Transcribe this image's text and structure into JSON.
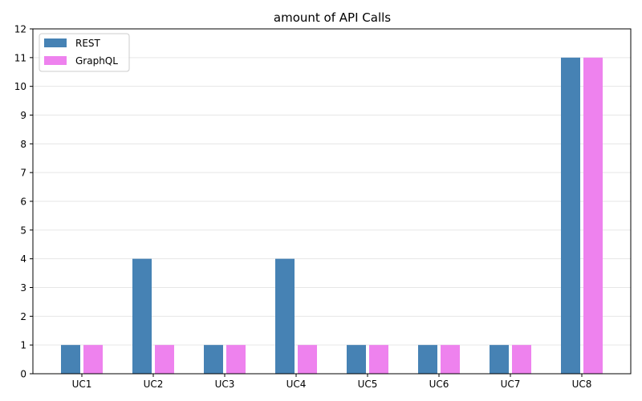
{
  "chart_data": {
    "type": "bar",
    "title": "amount of API Calls",
    "xlabel": "",
    "ylabel": "",
    "categories": [
      "UC1",
      "UC2",
      "UC3",
      "UC4",
      "UC5",
      "UC6",
      "UC7",
      "UC8"
    ],
    "series": [
      {
        "name": "REST",
        "color": "#4682b4",
        "values": [
          1,
          4,
          1,
          4,
          1,
          1,
          1,
          11
        ]
      },
      {
        "name": "GraphQL",
        "color": "#ee82ee",
        "values": [
          1,
          1,
          1,
          1,
          1,
          1,
          1,
          11
        ]
      }
    ],
    "ylim": [
      0,
      12
    ],
    "yticks": [
      0,
      1,
      2,
      3,
      4,
      5,
      6,
      7,
      8,
      9,
      10,
      11,
      12
    ],
    "grid": "horizontal",
    "legend_position": "top-left"
  }
}
